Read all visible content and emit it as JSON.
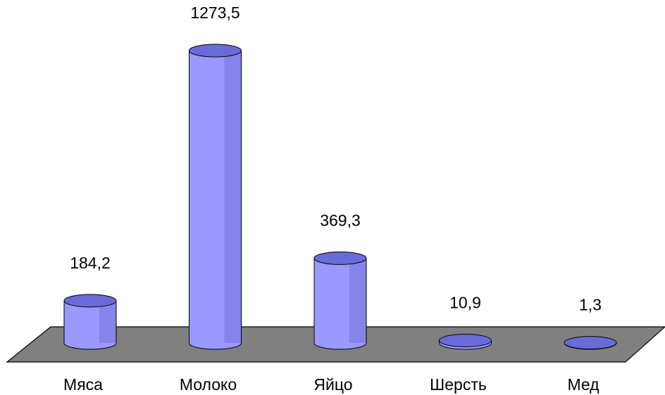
{
  "chart_data": {
    "type": "bar",
    "categories": [
      "Мяса",
      "Молоко",
      "Яйцо",
      "Шерсть",
      "Мед"
    ],
    "values": [
      184.2,
      1273.5,
      369.3,
      10.9,
      1.3
    ],
    "value_labels": [
      "184,2",
      "1273,5",
      "369,3",
      "10,9",
      "1,3"
    ],
    "color": "#9999ff"
  }
}
